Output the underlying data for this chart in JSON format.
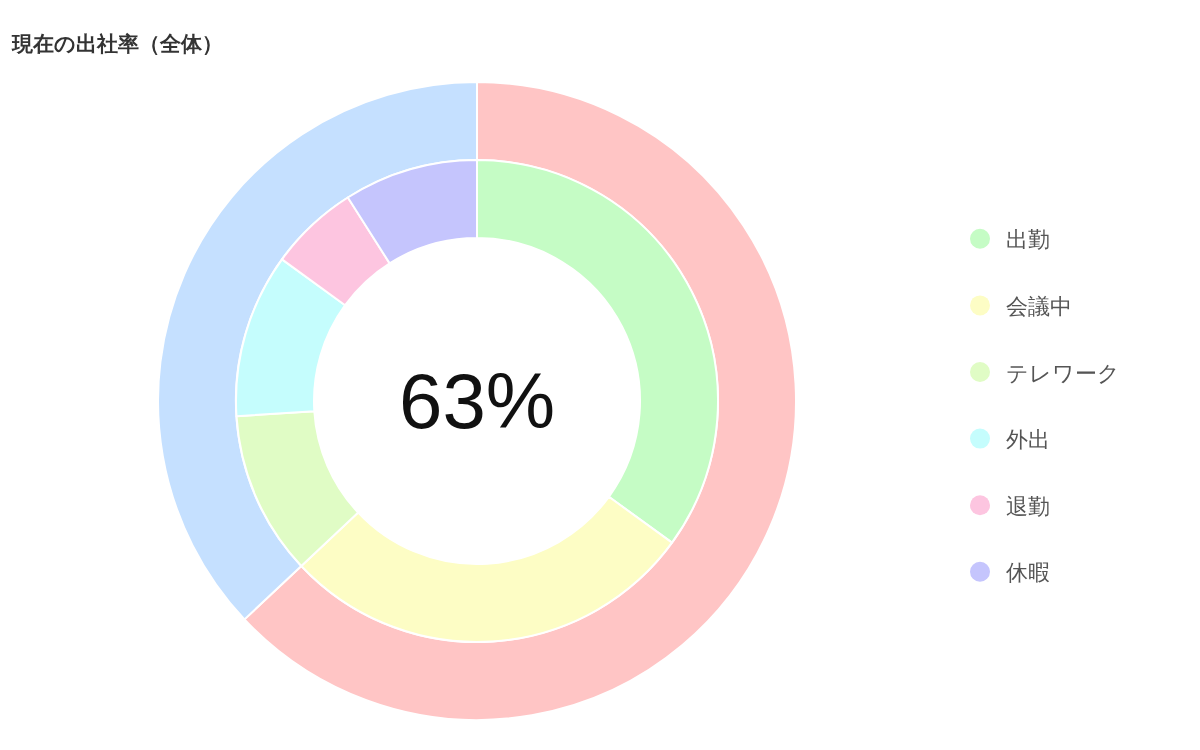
{
  "chart_data": [
    {
      "type": "donut",
      "title": "現在の出社率（全体）",
      "annotations": [
        "63%"
      ],
      "categories": [
        null,
        null
      ],
      "values": [
        63,
        37
      ],
      "colors": [
        "#ffc5c5",
        "#c5e0ff"
      ]
    },
    {
      "type": "donut",
      "categories": [
        "出勤",
        "会議中",
        "テレワーク",
        "外出",
        "退勤",
        "休暇"
      ],
      "values": [
        35,
        28,
        11,
        11,
        6,
        9
      ],
      "colors": [
        "#c5fcc5",
        "#fdfdc5",
        "#e0fcc5",
        "#c5fdfd",
        "#fdc5e0",
        "#c5c5fd"
      ],
      "legend": "right"
    }
  ]
}
